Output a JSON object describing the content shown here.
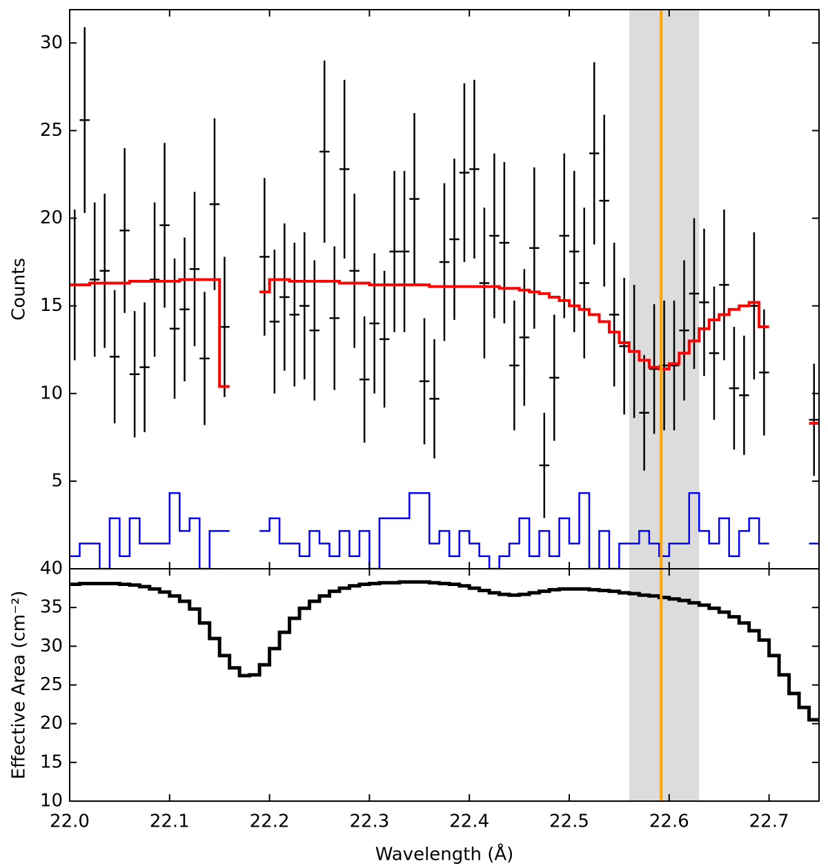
{
  "chart_data": [
    {
      "type": "step",
      "ylabel": "Counts",
      "xlim": [
        22.0,
        22.75
      ],
      "xticks": [
        22.0,
        22.1,
        22.2,
        22.3,
        22.4,
        22.5,
        22.6,
        22.7
      ],
      "ylim": [
        0,
        31.9
      ],
      "yticks": [
        5,
        10,
        15,
        20,
        25,
        30
      ],
      "shaded_region": {
        "range": [
          22.56,
          22.63
        ],
        "color": "#dcdcdc"
      },
      "vline": {
        "x": 22.592,
        "color": "#ffa500"
      },
      "x": [
        22.005,
        22.015,
        22.025,
        22.035,
        22.045,
        22.055,
        22.065,
        22.075,
        22.085,
        22.095,
        22.105,
        22.115,
        22.125,
        22.135,
        22.145,
        22.155,
        22.165,
        22.175,
        22.185,
        22.195,
        22.205,
        22.215,
        22.225,
        22.235,
        22.245,
        22.255,
        22.265,
        22.275,
        22.285,
        22.295,
        22.305,
        22.315,
        22.325,
        22.335,
        22.345,
        22.355,
        22.365,
        22.375,
        22.385,
        22.395,
        22.405,
        22.415,
        22.425,
        22.435,
        22.445,
        22.455,
        22.465,
        22.475,
        22.485,
        22.495,
        22.505,
        22.515,
        22.525,
        22.535,
        22.545,
        22.555,
        22.565,
        22.575,
        22.585,
        22.595,
        22.605,
        22.615,
        22.625,
        22.635,
        22.645,
        22.655,
        22.665,
        22.675,
        22.685,
        22.695,
        22.705,
        22.715,
        22.725,
        22.735,
        22.745
      ],
      "series": [
        {
          "style": "background",
          "color": "#0000ff",
          "width": 2.5,
          "values": [
            0.72,
            1.44,
            1.44,
            0,
            2.88,
            0.72,
            2.88,
            1.44,
            1.44,
            1.44,
            4.32,
            2.16,
            2.88,
            0,
            2.16,
            2.16,
            null,
            null,
            null,
            2.16,
            2.88,
            1.44,
            1.44,
            0.72,
            2.16,
            1.44,
            0.72,
            2.16,
            0.72,
            2.16,
            0,
            2.88,
            2.88,
            2.88,
            4.32,
            4.32,
            1.44,
            2.16,
            0.72,
            2.16,
            1.44,
            0.72,
            0,
            0.72,
            1.44,
            2.88,
            0.72,
            2.16,
            0.72,
            2.88,
            1.44,
            4.32,
            0,
            2.16,
            0,
            1.44,
            1.44,
            2.16,
            1.44,
            0.72,
            1.44,
            1.44,
            4.32,
            2.16,
            1.44,
            2.88,
            0.72,
            2.16,
            2.88,
            1.44,
            null,
            null,
            null,
            null,
            1.44
          ]
        },
        {
          "style": "errorbar",
          "color": "#000000",
          "width": 2.5,
          "values": [
            16.2,
            25.6,
            16.5,
            17.0,
            12.1,
            19.3,
            11.1,
            11.5,
            16.5,
            19.6,
            13.7,
            14.8,
            17.1,
            12.0,
            20.8,
            13.8,
            null,
            null,
            null,
            17.8,
            14.1,
            15.5,
            14.5,
            15.0,
            13.6,
            23.8,
            14.3,
            22.8,
            17.0,
            10.8,
            14.0,
            13.1,
            18.1,
            18.1,
            21.1,
            10.7,
            9.7,
            17.5,
            18.8,
            22.6,
            22.8,
            16.3,
            19.0,
            18.6,
            11.6,
            13.2,
            18.3,
            5.9,
            10.9,
            19.0,
            18.1,
            16.3,
            23.7,
            21.0,
            14.5,
            12.7,
            12.4,
            8.9,
            11.4,
            11.6,
            11.6,
            13.6,
            15.7,
            15.2,
            12.3,
            16.2,
            10.3,
            9.9,
            15.0,
            11.2,
            null,
            null,
            null,
            null,
            8.5
          ],
          "errors": [
            4.3,
            5.3,
            4.4,
            4.4,
            3.8,
            4.7,
            3.6,
            3.7,
            4.4,
            4.7,
            4.0,
            4.1,
            4.4,
            3.8,
            4.9,
            4.0,
            null,
            null,
            null,
            4.5,
            4.1,
            4.2,
            4.1,
            4.2,
            4.0,
            5.2,
            4.1,
            5.1,
            4.4,
            3.6,
            4.0,
            3.9,
            4.6,
            4.6,
            4.9,
            3.6,
            3.4,
            4.5,
            4.6,
            5.1,
            5.1,
            4.3,
            4.7,
            4.6,
            3.7,
            3.9,
            4.6,
            3.0,
            3.6,
            4.7,
            4.6,
            4.3,
            5.2,
            4.9,
            4.1,
            3.9,
            3.8,
            3.3,
            3.7,
            3.7,
            3.7,
            4.0,
            4.3,
            4.2,
            3.8,
            4.3,
            3.5,
            3.4,
            4.2,
            3.6,
            null,
            null,
            null,
            null,
            3.2
          ]
        },
        {
          "style": "step",
          "color": "#ff0000",
          "width": 4,
          "values": [
            16.2,
            16.2,
            16.3,
            16.3,
            16.3,
            16.3,
            16.4,
            16.4,
            16.4,
            16.4,
            16.4,
            16.5,
            16.5,
            16.5,
            16.5,
            10.4,
            null,
            null,
            null,
            15.8,
            16.5,
            16.5,
            16.4,
            16.4,
            16.4,
            16.4,
            16.4,
            16.3,
            16.3,
            16.3,
            16.2,
            16.2,
            16.2,
            16.2,
            16.2,
            16.2,
            16.1,
            16.1,
            16.1,
            16.1,
            16.1,
            16.1,
            16.1,
            16.0,
            16.0,
            15.9,
            15.8,
            15.7,
            15.5,
            15.3,
            15.0,
            14.8,
            14.5,
            14.1,
            13.5,
            12.9,
            12.4,
            11.9,
            11.5,
            11.4,
            11.7,
            12.3,
            13.0,
            13.7,
            14.2,
            14.5,
            14.8,
            15.0,
            15.2,
            13.8,
            null,
            null,
            null,
            null,
            8.3
          ]
        }
      ]
    },
    {
      "type": "step",
      "xlabel": "Wavelength (Å)",
      "ylabel": "Effective Area (cm⁻²)",
      "xlim": [
        22.0,
        22.75
      ],
      "xticks": [
        {
          "value": 22.0,
          "label": "22.0"
        },
        22.1,
        22.2,
        22.3,
        22.4,
        22.5,
        22.6,
        22.7
      ],
      "ylim": [
        10,
        40
      ],
      "yticks": [
        10,
        15,
        20,
        25,
        30,
        35,
        40
      ],
      "shaded_region": {
        "range": [
          22.56,
          22.63
        ],
        "color": "#dcdcdc"
      },
      "vline": {
        "x": 22.592,
        "color": "#ffa500"
      },
      "x": [
        22.005,
        22.015,
        22.025,
        22.035,
        22.045,
        22.055,
        22.065,
        22.075,
        22.085,
        22.095,
        22.105,
        22.115,
        22.125,
        22.135,
        22.145,
        22.155,
        22.165,
        22.175,
        22.185,
        22.195,
        22.205,
        22.215,
        22.225,
        22.235,
        22.245,
        22.255,
        22.265,
        22.275,
        22.285,
        22.295,
        22.305,
        22.315,
        22.325,
        22.335,
        22.345,
        22.355,
        22.365,
        22.375,
        22.385,
        22.395,
        22.405,
        22.415,
        22.425,
        22.435,
        22.445,
        22.455,
        22.465,
        22.475,
        22.485,
        22.495,
        22.505,
        22.515,
        22.525,
        22.535,
        22.545,
        22.555,
        22.565,
        22.575,
        22.585,
        22.595,
        22.605,
        22.615,
        22.625,
        22.635,
        22.645,
        22.655,
        22.665,
        22.675,
        22.685,
        22.695,
        22.705,
        22.715,
        22.725,
        22.735,
        22.745
      ],
      "series": [
        {
          "style": "step",
          "color": "#000000",
          "width": 5,
          "values": [
            38.0,
            38.1,
            38.1,
            38.1,
            38.1,
            38.0,
            37.9,
            37.7,
            37.4,
            37.0,
            36.5,
            35.8,
            34.8,
            33.0,
            31.0,
            28.8,
            27.2,
            26.2,
            26.3,
            27.6,
            29.7,
            31.8,
            33.6,
            34.9,
            35.8,
            36.5,
            37.1,
            37.5,
            37.8,
            38.0,
            38.1,
            38.2,
            38.2,
            38.3,
            38.3,
            38.3,
            38.2,
            38.1,
            38.0,
            37.8,
            37.5,
            37.2,
            36.9,
            36.7,
            36.6,
            36.7,
            36.9,
            37.1,
            37.3,
            37.4,
            37.4,
            37.4,
            37.3,
            37.2,
            37.1,
            36.9,
            36.8,
            36.6,
            36.5,
            36.3,
            36.1,
            35.9,
            35.6,
            35.3,
            34.9,
            34.4,
            33.8,
            33.0,
            32.0,
            30.8,
            28.8,
            26.3,
            23.9,
            22.1,
            20.5
          ]
        }
      ]
    }
  ]
}
